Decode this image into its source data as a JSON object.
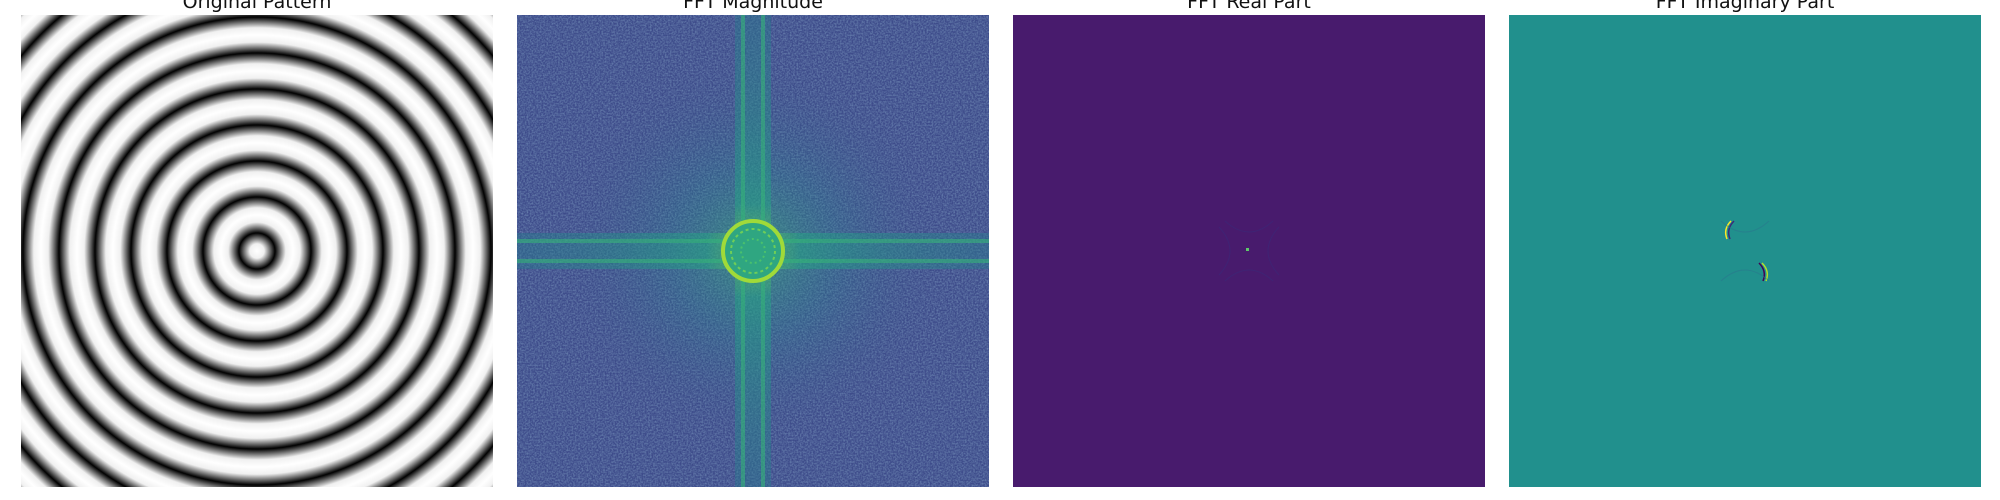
{
  "figure": {
    "panels": [
      {
        "title": "Original Pattern",
        "colormap": "gray"
      },
      {
        "title": "FFT Magnitude",
        "colormap": "viridis"
      },
      {
        "title": "FFT Real Part",
        "colormap": "viridis"
      },
      {
        "title": "FFT Imaginary Part",
        "colormap": "viridis"
      }
    ]
  },
  "colors": {
    "viridis_low": "#440154",
    "viridis_mid": "#21918c",
    "viridis_high": "#fde725",
    "real_background": "#481b6d",
    "imag_background": "#21908d"
  }
}
